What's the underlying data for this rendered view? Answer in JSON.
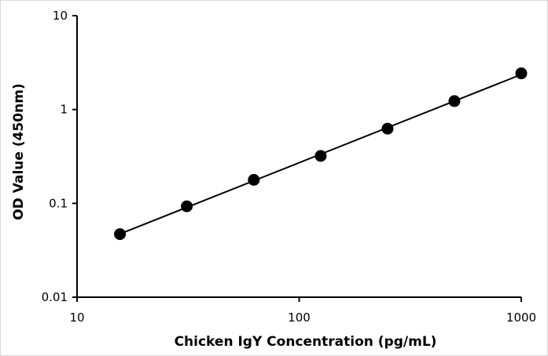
{
  "chart_data": {
    "type": "scatter",
    "xlabel": "Chicken IgY Concentration (pg/mL)",
    "ylabel": "OD Value (450nm)",
    "x_scale": "log",
    "y_scale": "log",
    "xlim": [
      10,
      1000
    ],
    "ylim": [
      0.01,
      10
    ],
    "x_ticks": [
      "10",
      "100",
      "1000"
    ],
    "y_ticks": [
      "10",
      "1",
      "0.1",
      "0.01"
    ],
    "grid": false,
    "legend": "none",
    "trendline": "power fit",
    "series": [
      {
        "x": [
          15.6,
          31.2,
          62.5,
          125,
          250,
          500,
          1000
        ],
        "y": [
          0.047,
          0.093,
          0.178,
          0.32,
          0.625,
          1.23,
          2.43
        ]
      }
    ],
    "colors": {
      "marker": "#000000",
      "line": "#000000",
      "axis": "#000000"
    }
  }
}
